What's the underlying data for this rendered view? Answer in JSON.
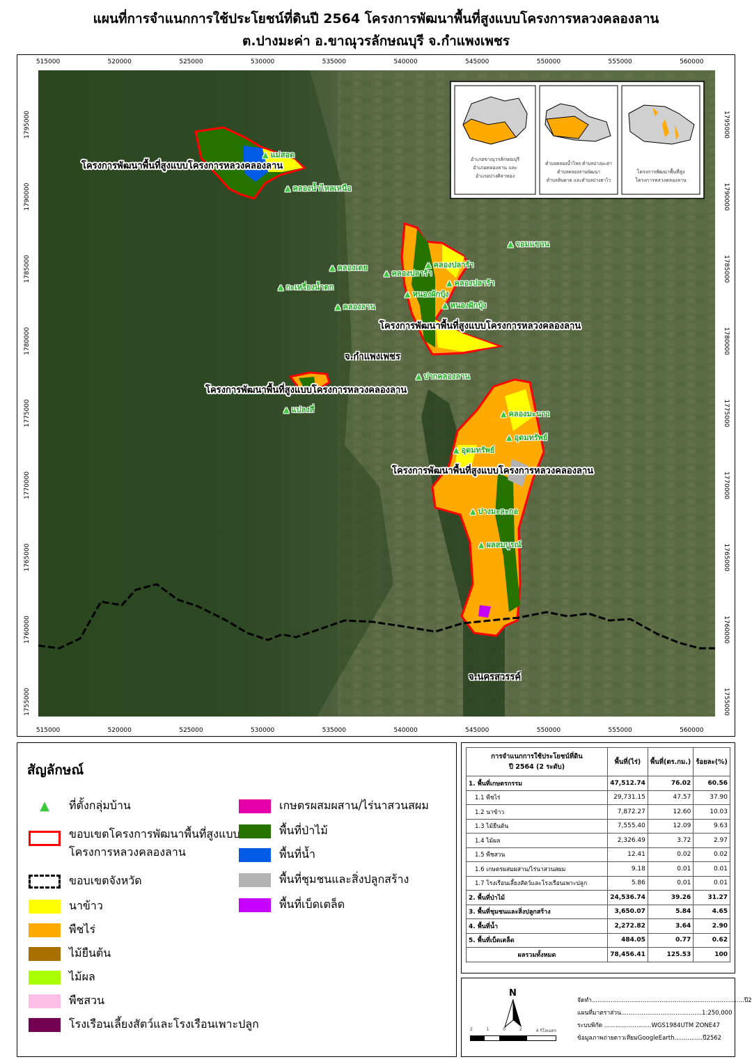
{
  "title_line1": "แผนที่การจำแนกการใช้ประโยชน์ที่ดินปี 2564 โครงการพัฒนาพื้นที่สูงแบบโครงการหลวงคลองลาน",
  "title_line2": "ต.ปางมะค่า อ.ขาณุวรลักษณบุรี จ.กำแพงเพชร",
  "map": {
    "x_ticks": [
      "515000",
      "520000",
      "525000",
      "530000",
      "535000",
      "540000",
      "545000",
      "550000",
      "555000",
      "560000"
    ],
    "y_ticks": [
      "1795000",
      "1790000",
      "1785000",
      "1780000",
      "1775000",
      "1770000",
      "1765000",
      "1760000",
      "1755000"
    ],
    "project_label": "โครงการพัฒนาพื้นที่สูงแบบโครงการหลวงคลองลาน",
    "province_labels": [
      "จ.กำแพงเพชร",
      "จ.นครสวรรค์"
    ],
    "villages": [
      "แม่สอด",
      "คลองน้ำไหลเหนือ",
      "จอมแขวน",
      "คลองเตย",
      "คลองปลาร้า",
      "คลองปลาร้า",
      "คลองปลาร้า",
      "กะเหรี่ยงน้ำตก",
      "หนองผักบุ้ง",
      "หนองผักบุ้ง",
      "คลองลาน",
      "ปากคลองลาน",
      "แปลงสี่",
      "คลองมะนาว",
      "อุดมทรัพย์",
      "อุดมทรัพย์",
      "ปางมะละกอ",
      "ผลสมบูรณ์"
    ],
    "insets": [
      {
        "lines": [
          "อำเภอขาณุวรลักษณบุรี",
          "อำเภอคลองลาน และ",
          "อำเภอปางศิลาทอง"
        ]
      },
      {
        "lines": [
          "ตำบลคลองน้ำไหล ตำบลปางมะค่า",
          "ตำบลคลองลานพัฒนา",
          "ตำบลหินดาด และตำบลปางตาไว"
        ]
      },
      {
        "lines": [
          "โครงการพัฒนาพื้นที่สูง",
          "โครงการหลวงคลองลาน"
        ]
      }
    ]
  },
  "legend": {
    "title": "สัญลักษณ์",
    "items_left": [
      {
        "label": "ที่ตั้งกลุ่มบ้าน",
        "kind": "arrow",
        "color": "#3cc83c"
      },
      {
        "label": "ขอบเขตโครงการพัฒนาพื้นที่สูงแบบ",
        "label2": "โครงการหลวงคลองลาน",
        "kind": "outline-red",
        "color": "#ff0000"
      },
      {
        "label": "ขอบเขตจังหวัด",
        "kind": "outline-dash",
        "color": "#000000"
      },
      {
        "label": "นาข้าว",
        "kind": "fill",
        "color": "#ffff00"
      },
      {
        "label": "พืชไร่",
        "kind": "fill",
        "color": "#ffaa00"
      },
      {
        "label": "ไม้ยืนต้น",
        "kind": "fill",
        "color": "#a87000"
      },
      {
        "label": "ไม้ผล",
        "kind": "fill",
        "color": "#aaff00"
      },
      {
        "label": "พืชสวน",
        "kind": "fill",
        "color": "#ffbee8"
      },
      {
        "label": "โรงเรือนเลี้ยงสัตว์และโรงเรือนเพาะปลูก",
        "kind": "fill",
        "color": "#730050"
      }
    ],
    "items_right": [
      {
        "label": "เกษตรผสมผสาน/ไร่นาสวนสผม",
        "kind": "fill",
        "color": "#e600a9"
      },
      {
        "label": "พื้นที่ป่าไม้",
        "kind": "fill",
        "color": "#267300"
      },
      {
        "label": "พื้นที่น้ำ",
        "kind": "fill",
        "color": "#005ce6"
      },
      {
        "label": "พื้นที่ชุมชนและสิ่งปลูกสร้าง",
        "kind": "fill",
        "color": "#b2b2b2"
      },
      {
        "label": "พื้นที่เบ็ดเตล็ด",
        "kind": "fill",
        "color": "#c500ff"
      }
    ]
  },
  "table": {
    "header": [
      "การจำแนกการใช้ประโยชน์ที่ดิน",
      "ปี 2564 (2 ระดับ)",
      "พื้นที่(ไร่)",
      "พื้นที่(ตร.กม.)",
      "ร้อยละ(%)"
    ],
    "rows": [
      {
        "label": "1. พื้นที่เกษตรกรรม",
        "rai": "47,512.74",
        "km2": "76.02",
        "pct": "60.56",
        "main": true
      },
      {
        "label": "1.1 พืชไร่",
        "rai": "29,731.15",
        "km2": "47.57",
        "pct": "37.90"
      },
      {
        "label": "1.2 นาข้าว",
        "rai": "7,872.27",
        "km2": "12.60",
        "pct": "10.03"
      },
      {
        "label": "1.3 ไม้ยืนต้น",
        "rai": "7,555.40",
        "km2": "12.09",
        "pct": "9.63"
      },
      {
        "label": "1.4 ไม้ผล",
        "rai": "2,326.49",
        "km2": "3.72",
        "pct": "2.97"
      },
      {
        "label": "1.5 พืชสวน",
        "rai": "12.41",
        "km2": "0.02",
        "pct": "0.02"
      },
      {
        "label": "1.6 เกษตรผสมผสาน/ไร่นาสวนสผม",
        "rai": "9.18",
        "km2": "0.01",
        "pct": "0.01"
      },
      {
        "label": "1.7 โรงเรือนเลี้ยงสัตว์และโรงเรือนเพาะปลูก",
        "rai": "5.86",
        "km2": "0.01",
        "pct": "0.01"
      },
      {
        "label": "2. พื้นที่ป่าไม้",
        "rai": "24,536.74",
        "km2": "39.26",
        "pct": "31.27",
        "main": true
      },
      {
        "label": "3. พื้นที่ชุมชนและสิ่งปลูกสร้าง",
        "rai": "3,650.07",
        "km2": "5.84",
        "pct": "4.65",
        "main": true
      },
      {
        "label": "4. พื้นที่น้ำ",
        "rai": "2,272.82",
        "km2": "3.64",
        "pct": "2.90",
        "main": true
      },
      {
        "label": "5. พื้นที่เบ็ดเตล็ด",
        "rai": "484.05",
        "km2": "0.77",
        "pct": "0.62",
        "main": true
      }
    ],
    "total": {
      "label": "ผลรวมทั้งหมด",
      "rai": "78,456.41",
      "km2": "125.53",
      "pct": "100"
    }
  },
  "meta": {
    "north": "N",
    "scale_labels": [
      "2",
      "1",
      "0",
      "2",
      "4 กิโลเมตร"
    ],
    "lines": [
      "จัดทำ.................................................................................ปี2567",
      "แผนที่มาตราส่วน...........................................1:250,000",
      "ระบบพิกัด .........................WGS1984UTM ZONE47",
      "ข้อมูลภาพถ่ายดาวเทียมGoogleEarth...............ปี2562"
    ]
  }
}
